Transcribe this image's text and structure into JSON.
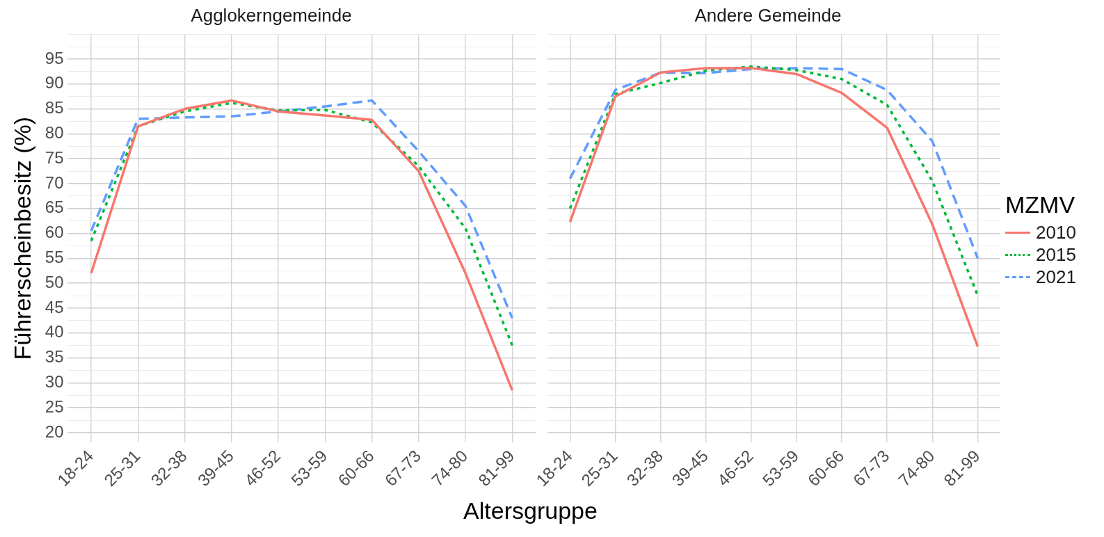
{
  "chart_data": [
    {
      "type": "line",
      "title": "Agglokerngemeinde",
      "xlabel": "Altersgruppe",
      "ylabel": "Führerscheinbesitz (%)",
      "categories": [
        "18-24",
        "25-31",
        "32-38",
        "39-45",
        "46-52",
        "53-59",
        "60-66",
        "67-73",
        "74-80",
        "81-99"
      ],
      "series": [
        {
          "color": "#f8766d",
          "line_style": "solid",
          "values": [
            52,
            81.5,
            85,
            86.7,
            84.5,
            83.7,
            82.8,
            72.5,
            52,
            28.5
          ]
        },
        {
          "color": "#00ba38",
          "line_style": "dotted",
          "values": [
            58.5,
            81.5,
            84.5,
            86.2,
            84.7,
            84.8,
            82.3,
            73.5,
            61,
            37.5
          ]
        },
        {
          "color": "#619cff",
          "line_style": "dashed",
          "values": [
            60.5,
            83,
            83.3,
            83.5,
            84.5,
            85.5,
            86.7,
            76.5,
            65.5,
            43
          ]
        }
      ],
      "ylim": [
        18,
        100
      ],
      "yticks": [
        20,
        {
          "value": 22.5,
          "label": null
        },
        25,
        {
          "value": 27.5,
          "label": null
        },
        30,
        {
          "value": 32.5,
          "label": null
        },
        35,
        {
          "value": 37.5,
          "label": null
        },
        40,
        {
          "value": 42.5,
          "label": null
        },
        45,
        {
          "value": 47.5,
          "label": null
        },
        50,
        {
          "value": 52.5,
          "label": null
        },
        55,
        {
          "value": 57.5,
          "label": null
        },
        60,
        {
          "value": 62.5,
          "label": null
        },
        65,
        {
          "value": 67.5,
          "label": null
        },
        70,
        {
          "value": 72.5,
          "label": null
        },
        75,
        {
          "value": 77.5,
          "label": null
        },
        80,
        {
          "value": 82.5,
          "label": null
        },
        85,
        {
          "value": 87.5,
          "label": null
        },
        90,
        {
          "value": 92.5,
          "label": null
        },
        95,
        {
          "value": 97.5,
          "label": null
        },
        {
          "value": 100,
          "label": null
        }
      ],
      "grid": true,
      "marker": "none",
      "legend": false
    },
    {
      "type": "line",
      "title": "Andere Gemeinde",
      "legend_title": "MZMV",
      "categories": [
        "18-24",
        "25-31",
        "32-38",
        "39-45",
        "46-52",
        "53-59",
        "60-66",
        "67-73",
        "74-80",
        "81-99"
      ],
      "series": [
        {
          "name": "2010",
          "color": "#f8766d",
          "line_style": "solid",
          "values": [
            62.3,
            87.5,
            92.3,
            93.2,
            93.2,
            92,
            88.2,
            81.2,
            61.8,
            37.3
          ]
        },
        {
          "name": "2015",
          "color": "#00ba38",
          "line_style": "dotted",
          "values": [
            65,
            88,
            90.2,
            92.7,
            93.5,
            92.8,
            91,
            85.8,
            70.5,
            47.5
          ]
        },
        {
          "name": "2021",
          "color": "#619cff",
          "line_style": "dashed",
          "values": [
            71,
            88.8,
            92.3,
            92.2,
            93,
            93.2,
            93,
            88.8,
            78.5,
            55
          ]
        }
      ],
      "ylim": [
        18,
        100
      ],
      "yticks": [
        20,
        {
          "value": 22.5,
          "label": null
        },
        25,
        {
          "value": 27.5,
          "label": null
        },
        30,
        {
          "value": 32.5,
          "label": null
        },
        35,
        {
          "value": 37.5,
          "label": null
        },
        40,
        {
          "value": 42.5,
          "label": null
        },
        45,
        {
          "value": 47.5,
          "label": null
        },
        50,
        {
          "value": 52.5,
          "label": null
        },
        55,
        {
          "value": 57.5,
          "label": null
        },
        60,
        {
          "value": 62.5,
          "label": null
        },
        65,
        {
          "value": 67.5,
          "label": null
        },
        70,
        {
          "value": 72.5,
          "label": null
        },
        75,
        {
          "value": 77.5,
          "label": null
        },
        80,
        {
          "value": 82.5,
          "label": null
        },
        85,
        {
          "value": 87.5,
          "label": null
        },
        90,
        {
          "value": 92.5,
          "label": null
        },
        95,
        {
          "value": 97.5,
          "label": null
        },
        {
          "value": 100,
          "label": null
        }
      ],
      "tick_labels": "x",
      "grid": true,
      "marker": "none",
      "legend": "right"
    }
  ]
}
